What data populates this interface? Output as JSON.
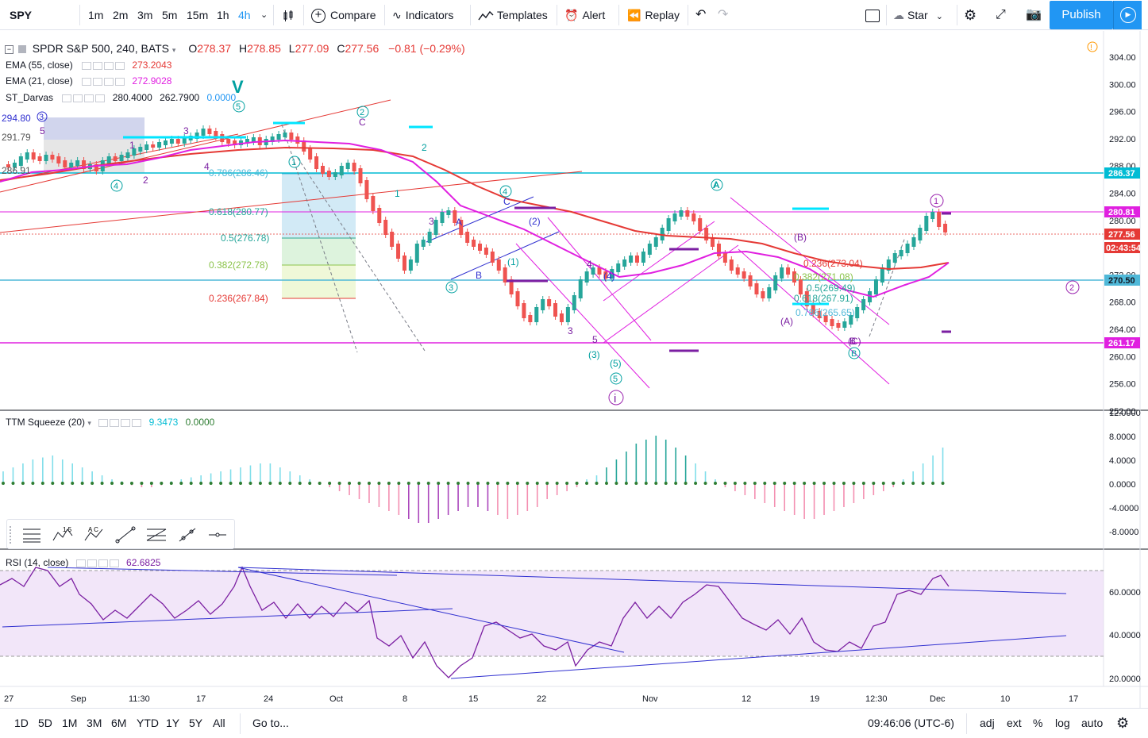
{
  "toolbar": {
    "symbol": "SPY",
    "intervals": [
      "1m",
      "2m",
      "3m",
      "5m",
      "15m",
      "1h",
      "4h"
    ],
    "active_interval": "4h",
    "compare_label": "Compare",
    "indicators_label": "Indicators",
    "templates_label": "Templates",
    "alert_label": "Alert",
    "replay_label": "Replay",
    "star_label": "Star",
    "publish_label": "Publish"
  },
  "legend": {
    "title": "SPDR S&P 500, 240, BATS",
    "open_label": "O",
    "open": "278.37",
    "high_label": "H",
    "high": "278.85",
    "low_label": "L",
    "low": "277.09",
    "close_label": "C",
    "close": "277.56",
    "change": "−0.81 (−0.29%)",
    "indicators": [
      {
        "name": "EMA (55, close)",
        "value": "273.2043",
        "color": "#e53935"
      },
      {
        "name": "EMA (21, close)",
        "value": "272.9028",
        "color": "#e020e0"
      },
      {
        "name": "ST_Darvas",
        "value": "280.4000",
        "value2": "262.7900",
        "value3": "0.0000"
      }
    ]
  },
  "ttm": {
    "label": "TTM Squeeze (20)",
    "value1": "9.3473",
    "value2": "0.0000"
  },
  "rsi": {
    "label": "RSI (14, close)",
    "value": "62.6825"
  },
  "price_axis": [
    "304.00",
    "300.00",
    "296.00",
    "292.00",
    "288.00",
    "284.00",
    "280.00",
    "276.00",
    "272.00",
    "268.00",
    "264.00",
    "260.00",
    "256.00",
    "252.00"
  ],
  "price_labels": [
    {
      "text": "286.37",
      "color": "#00bcd4"
    },
    {
      "text": "280.81",
      "color": "#e020e0"
    },
    {
      "text": "277.56",
      "color": "#e53935"
    },
    {
      "text": "02:43:54",
      "color": "#e53935"
    },
    {
      "text": "270.50",
      "color": "#4fb8d8"
    },
    {
      "text": "261.17",
      "color": "#e020e0"
    }
  ],
  "ttm_axis": [
    "12.0000",
    "8.0000",
    "4.0000",
    "0.0000",
    "-4.0000",
    "-8.0000"
  ],
  "rsi_axis": [
    "60.0000",
    "40.0000",
    "20.0000"
  ],
  "time_axis": [
    "27",
    "Sep",
    "11:30",
    "17",
    "24",
    "Oct",
    "8",
    "15",
    "22",
    "Nov",
    "12",
    "19",
    "12:30",
    "Dec",
    "10",
    "17"
  ],
  "fib_labels": [
    "0.786(286.46)",
    "0.618(280.77)",
    "0.5(276.78)",
    "0.382(272.78)",
    "0.236(267.84)",
    "0.236(273.04)",
    "0.382(271.08)",
    "0.5(269.49)",
    "0.618(267.91)",
    "0.786(265.65)"
  ],
  "left_labels": [
    "294.80",
    "291.79",
    "286.91"
  ],
  "wave_labels": [
    "V",
    "5",
    "3",
    "1",
    "2",
    "4",
    "3",
    "A",
    "B",
    "C",
    "1",
    "2",
    "3",
    "4",
    "5",
    "A",
    "B",
    "C",
    "(1)",
    "(2)",
    "(3)",
    "(4)",
    "(5)",
    "i",
    "(A)",
    "(B)",
    "(C)",
    "①",
    "②",
    "③",
    "④",
    "⑤"
  ],
  "bottom": {
    "ranges": [
      "1D",
      "5D",
      "1M",
      "3M",
      "6M",
      "YTD",
      "1Y",
      "5Y",
      "All"
    ],
    "goto_label": "Go to...",
    "clock": "09:46:06 (UTC-6)",
    "adj_label": "adj",
    "ext_label": "ext",
    "pct_label": "%",
    "log_label": "log",
    "auto_label": "auto"
  },
  "colors": {
    "bull": "#26a69a",
    "bear": "#ef5350",
    "ema55": "#e53935",
    "ema21": "#e020e0",
    "accent": "#2196f3"
  }
}
